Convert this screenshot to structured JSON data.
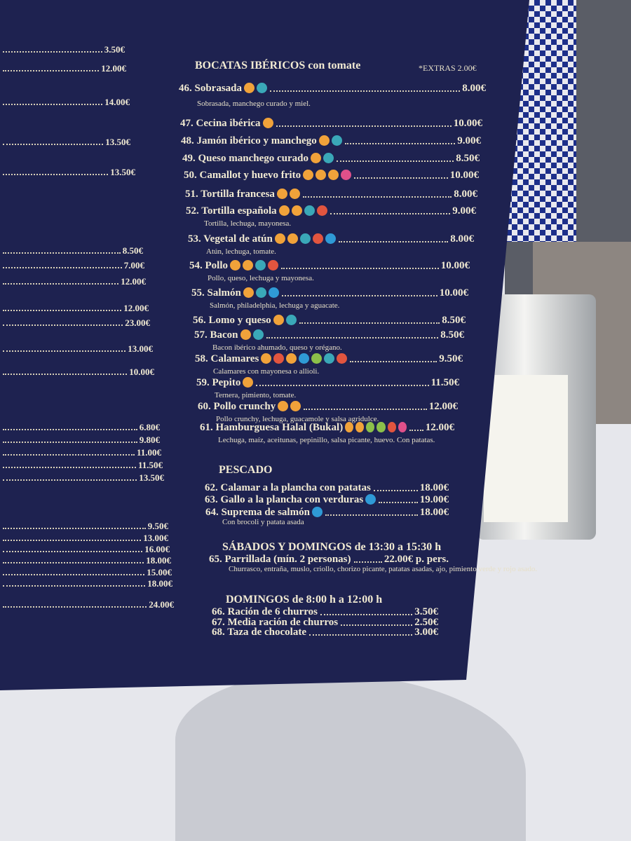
{
  "menu": {
    "title": "BOCATAS IBÉRICOS con tomate",
    "extras": "*EXTRAS 2.00€",
    "items": [
      {
        "name": "46. Sobrasada",
        "price": "8.00€",
        "desc": "Sobrasada, manchego curado y miel."
      },
      {
        "name": "47. Cecina ibérica",
        "price": "10.00€"
      },
      {
        "name": "48. Jamón ibérico y manchego",
        "price": "9.00€"
      },
      {
        "name": "49. Queso manchego curado",
        "price": "8.50€"
      },
      {
        "name": "50. Camallot y huevo frito",
        "price": "10.00€"
      },
      {
        "name": "51. Tortilla francesa",
        "price": "8.00€"
      },
      {
        "name": "52. Tortilla española",
        "price": "9.00€",
        "desc": "Tortilla, lechuga, mayonesa."
      },
      {
        "name": "53. Vegetal de atún",
        "price": "8.00€",
        "desc": "Atún, lechuga, tomate."
      },
      {
        "name": "54. Pollo",
        "price": "10.00€",
        "desc": "Pollo, queso, lechuga y mayonesa."
      },
      {
        "name": "55. Salmón",
        "price": "10.00€",
        "desc": "Salmón, philadelphia, lechuga y aguacate."
      },
      {
        "name": "56. Lomo y queso",
        "price": "8.50€"
      },
      {
        "name": "57. Bacon",
        "price": "8.50€",
        "desc": "Bacon ibérico ahumado, queso y orégano."
      },
      {
        "name": "58. Calamares",
        "price": "9.50€",
        "desc": "Calamares con mayonesa o allioli."
      },
      {
        "name": "59. Pepito",
        "price": "11.50€",
        "desc": "Ternera, pimiento, tomate."
      },
      {
        "name": "60. Pollo crunchy",
        "price": "12.00€",
        "desc": "Pollo crunchy, lechuga, guacamole y salsa agridulce."
      },
      {
        "name": "61. Hamburguesa Halal (Bukal)",
        "price": "12.00€",
        "desc": "Lechuga, maíz, aceitunas, pepinillo, salsa picante, huevo. Con patatas."
      }
    ],
    "pescado": {
      "title": "PESCADO",
      "items": [
        {
          "name": "62. Calamar a la plancha con patatas",
          "price": "18.00€"
        },
        {
          "name": "63. Gallo a la plancha con verduras",
          "price": "19.00€"
        },
        {
          "name": "64. Suprema de salmón",
          "price": "18.00€",
          "desc": "Con brocoli y patata asada"
        }
      ]
    },
    "weekend": {
      "title": "SÁBADOS Y DOMINGOS de 13:30 a 15:30 h",
      "items": [
        {
          "name": "65. Parrillada (mín. 2 personas)",
          "price": "22.00€ p. pers.",
          "desc": "Churrasco, entraña, muslo, criollo, chorizo picante, patatas asadas, ajo, pimiento verde y rojo asado."
        }
      ]
    },
    "sunday": {
      "title": "DOMINGOS de 8:00 h a 12:00 h",
      "items": [
        {
          "name": "66. Ración de 6 churros",
          "price": "3.50€"
        },
        {
          "name": "67. Media ración de churros",
          "price": "2.50€"
        },
        {
          "name": "68. Taza de chocolate",
          "price": "3.00€"
        }
      ]
    },
    "left_prices": [
      "3.50€",
      "12.00€",
      "14.00€",
      "13.50€",
      "13.50€",
      "8.50€",
      "7.00€",
      "12.00€",
      "12.00€",
      "23.00€",
      "13.00€",
      "10.00€",
      "6.80€",
      "9.80€",
      "11.00€",
      "11.50€",
      "13.50€",
      "9.50€",
      "13.00€",
      "16.00€",
      "18.00€",
      "15.00€",
      "18.00€",
      "24.00€"
    ]
  }
}
